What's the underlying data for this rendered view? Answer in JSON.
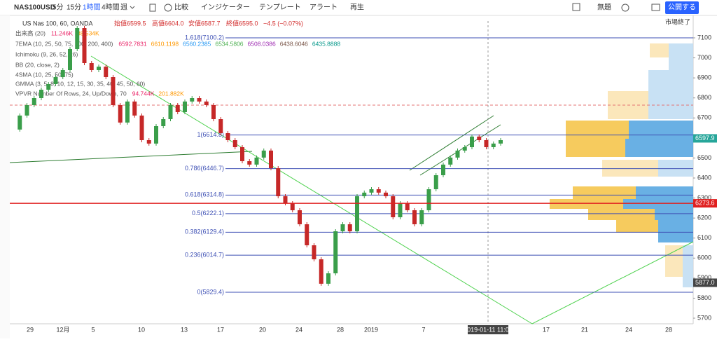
{
  "toolbar": {
    "symbol": "NAS100USD",
    "intervals": [
      "5分",
      "15分",
      "1時間",
      "4時間",
      "週"
    ],
    "buttons": [
      "比較",
      "インジケーター",
      "テンプレート",
      "アラート",
      "再生"
    ],
    "layout_name": "無題",
    "publish": "公開する"
  },
  "legend": {
    "title": "US Nas 100, 60, OANDA",
    "ohlc": [
      "始値6599.5",
      "高値6604.0",
      "安値6587.7",
      "終値6595.0"
    ],
    "change": "−4.5 (−0.07%)",
    "status": "市場終了"
  },
  "indicators": [
    {
      "name": "出来高 (20)",
      "values": [
        "11.246K",
        "38.534K"
      ]
    },
    {
      "name": "7EMA (10, 25, 50, 75, 100, 200, 400)",
      "values": [
        "6592.7831",
        "6610.1198",
        "6560.2385",
        "6534.5806",
        "6508.0386",
        "6438.6046",
        "6435.8888"
      ]
    },
    {
      "name": "Ichimoku (9, 26, 52, 26)",
      "values": []
    },
    {
      "name": "BB (20, close, 2)",
      "values": []
    },
    {
      "name": "4SMA (10, 25, 50, 75)",
      "values": []
    },
    {
      "name": "GMMA (3, 5, 8, 10, 12, 15, 30, 35, 40, 45, 50, 60)",
      "values": []
    },
    {
      "name": "VPVR Number Of Rows, 24, Up/Down, 70",
      "values": [
        "94.744K",
        "201.882K"
      ]
    }
  ],
  "chart_data": {
    "type": "candlestick",
    "closes": [
      6642,
      6712,
      6764,
      6799,
      6841,
      6869,
      6904,
      6939,
      7044,
      7149,
      6974,
      6939,
      6956,
      6904,
      6764,
      6677,
      6782,
      6712,
      6589,
      6572,
      6659,
      6694,
      6764,
      6729,
      6782,
      6799,
      6782,
      6764,
      6694,
      6624,
      6589,
      6554,
      6484,
      6467,
      6502,
      6537,
      6449,
      6309,
      6274,
      6239,
      6169,
      6064,
      5994,
      5872,
      5924,
      6134,
      6169,
      6134,
      6309,
      6327,
      6344,
      6327,
      6309,
      6204,
      6274,
      6239,
      6169,
      6239,
      6344,
      6414,
      6467,
      6502,
      6537,
      6554,
      6607,
      6589,
      6554,
      6572,
      6589
    ],
    "ylim": [
      5672,
      7212
    ],
    "yticks": [
      5700,
      5800,
      5900,
      6000,
      6100,
      6200,
      6300,
      6400,
      6500,
      6600,
      6700,
      6800,
      6900,
      7000,
      7100
    ],
    "fib_levels": [
      {
        "value": 7100.2,
        "label": "1.618(7100.2)"
      },
      {
        "value": 6614.8,
        "label": "1(6614.8)"
      },
      {
        "value": 6446.7,
        "label": "0.786(6446.7)"
      },
      {
        "value": 6314.8,
        "label": "0.618(6314.8)"
      },
      {
        "value": 6222.1,
        "label": "0.5(6222.1)"
      },
      {
        "value": 6129.4,
        "label": "0.382(6129.4)"
      },
      {
        "value": 6014.7,
        "label": "0.236(6014.7)"
      },
      {
        "value": 5829.4,
        "label": "0(5829.4)"
      }
    ],
    "price_tags": [
      {
        "value": 6597.9,
        "label": "6597.9",
        "color": "#26a69a"
      },
      {
        "value": 6273.6,
        "label": "6273.6",
        "color": "#e02020"
      },
      {
        "value": 5877.0,
        "label": "5877.0",
        "color": "#444444"
      }
    ],
    "x_labels": [
      "29",
      "12月",
      "5",
      "10",
      "13",
      "17",
      "20",
      "24",
      "28",
      "2019",
      "7",
      "17",
      "21",
      "24",
      "28"
    ],
    "time_tag": "2019-01-11  11:00"
  }
}
